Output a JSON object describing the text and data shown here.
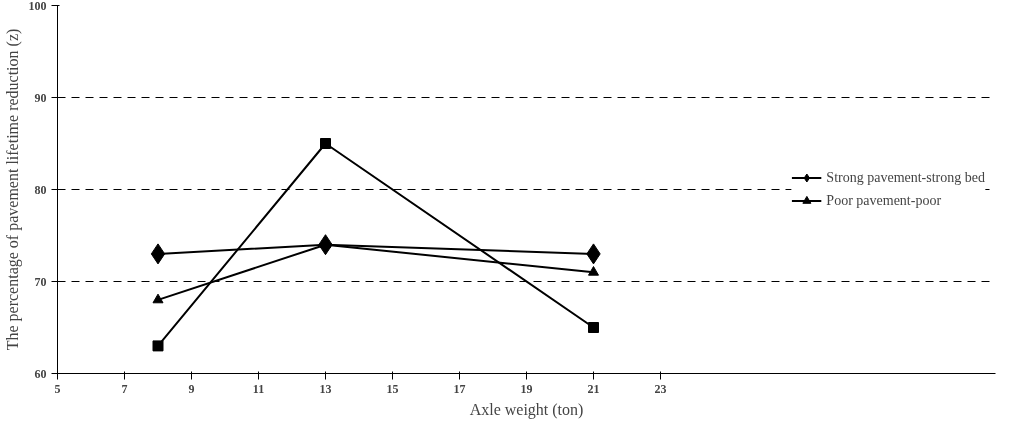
{
  "chart_data": {
    "type": "line",
    "xlabel": "Axle weight (ton)",
    "ylabel": "The percentage of pavement lifetime reduction (z)",
    "x": [
      8,
      13,
      21
    ],
    "series": [
      {
        "name": "Strong pavement-strong bed",
        "color": "#000000",
        "marker": "diamond",
        "values": [
          73,
          74,
          73
        ]
      },
      {
        "color": "#000000",
        "marker": "square",
        "values": [
          63,
          85,
          65
        ]
      },
      {
        "name": "Poor pavement-poor",
        "color": "#000000",
        "marker": "triangle",
        "values": [
          68,
          74,
          71
        ]
      }
    ],
    "xlim": [
      5,
      33
    ],
    "xticks": [
      5,
      7,
      9,
      11,
      13,
      15,
      17,
      19,
      21,
      23
    ],
    "ylim": [
      60,
      100
    ],
    "yticks": [
      60,
      70,
      80,
      90,
      100
    ],
    "grid": "y",
    "legend": "right",
    "line_style": "solid"
  }
}
